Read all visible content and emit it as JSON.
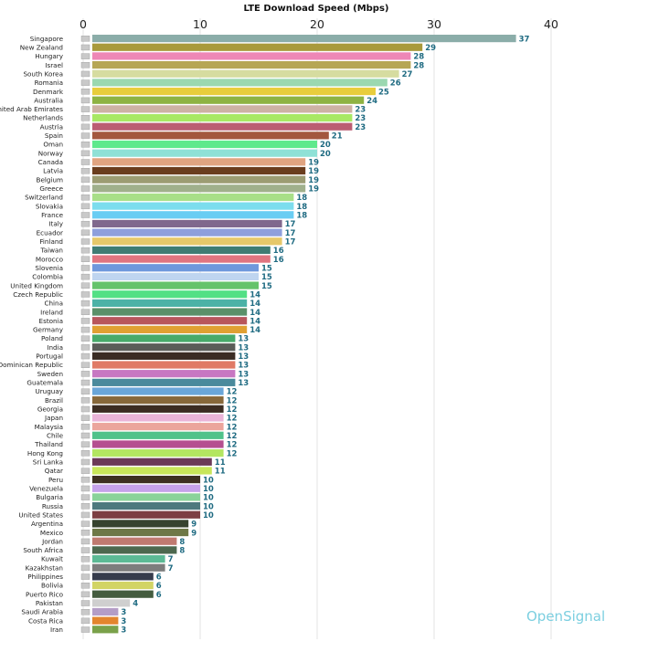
{
  "chart_data": {
    "type": "bar",
    "orientation": "horizontal",
    "title": "LTE Download Speed (Mbps)",
    "xlim": [
      0,
      40
    ],
    "x_ticks": [
      "0",
      "10",
      "20",
      "30",
      "40"
    ],
    "grid": true,
    "categories": [
      "Singapore",
      "New Zealand",
      "Hungary",
      "Israel",
      "South Korea",
      "Romania",
      "Denmark",
      "Australia",
      "United Arab Emirates",
      "Netherlands",
      "Austria",
      "Spain",
      "Oman",
      "Norway",
      "Canada",
      "Latvia",
      "Belgium",
      "Greece",
      "Switzerland",
      "Slovakia",
      "France",
      "Italy",
      "Ecuador",
      "Finland",
      "Taiwan",
      "Morocco",
      "Slovenia",
      "Colombia",
      "United Kingdom",
      "Czech Republic",
      "China",
      "Ireland",
      "Estonia",
      "Germany",
      "Poland",
      "India",
      "Portugal",
      "Dominican Republic",
      "Sweden",
      "Guatemala",
      "Uruguay",
      "Brazil",
      "Georgia",
      "Japan",
      "Malaysia",
      "Chile",
      "Thailand",
      "Hong Kong",
      "Sri Lanka",
      "Qatar",
      "Peru",
      "Venezuela",
      "Bulgaria",
      "Russia",
      "United States",
      "Argentina",
      "Mexico",
      "Jordan",
      "South Africa",
      "Kuwait",
      "Kazakhstan",
      "Philippines",
      "Bolivia",
      "Puerto Rico",
      "Pakistan",
      "Saudi Arabia",
      "Costa Rica",
      "Iran"
    ],
    "values": [
      37,
      29,
      28,
      28,
      27,
      26,
      25,
      24,
      23,
      23,
      23,
      21,
      20,
      20,
      19,
      19,
      19,
      19,
      18,
      18,
      18,
      17,
      17,
      17,
      16,
      16,
      15,
      15,
      15,
      14,
      14,
      14,
      14,
      14,
      13,
      13,
      13,
      13,
      13,
      13,
      12,
      12,
      12,
      12,
      12,
      12,
      12,
      12,
      11,
      11,
      10,
      10,
      10,
      10,
      10,
      9,
      9,
      8,
      8,
      7,
      7,
      6,
      6,
      6,
      4,
      3,
      3,
      3
    ],
    "colors": [
      "#8bada9",
      "#a99a3b",
      "#ee87b6",
      "#b6a654",
      "#d6dca0",
      "#9bd8b0",
      "#e8cd3c",
      "#8eb343",
      "#cdb2a4",
      "#a8e864",
      "#bb5d72",
      "#a3573e",
      "#5ee98c",
      "#8fe1d6",
      "#e0a481",
      "#6a3d1e",
      "#9c9c73",
      "#a0b08c",
      "#a8df88",
      "#7cddee",
      "#69cdf3",
      "#80688d",
      "#8e9fdc",
      "#e6c86a",
      "#3f7c73",
      "#e07580",
      "#6f98dc",
      "#bfd5f0",
      "#65c36b",
      "#53e085",
      "#4cb2a6",
      "#5b9069",
      "#b8565c",
      "#e0a032",
      "#48aa6a",
      "#5a5c58",
      "#3a2c24",
      "#e07a66",
      "#c777c2",
      "#4a8a9c",
      "#6aa6d8",
      "#87683a",
      "#3b2c22",
      "#eab4d8",
      "#eba59c",
      "#50c28a",
      "#b54f90",
      "#b3e661",
      "#6b3957",
      "#c8e65a",
      "#3d3021",
      "#c6a2ea",
      "#8ad39a",
      "#4e797e",
      "#7d3f43",
      "#37432f",
      "#6e7847",
      "#c07a70",
      "#4d684e",
      "#5cba95",
      "#7d7d7d",
      "#363c4c",
      "#d2d464",
      "#445c3f",
      "#cfcfcf",
      "#b49dc6",
      "#e3852e",
      "#7aa14a"
    ]
  },
  "branding": {
    "logo_text": "OpenSignal"
  }
}
